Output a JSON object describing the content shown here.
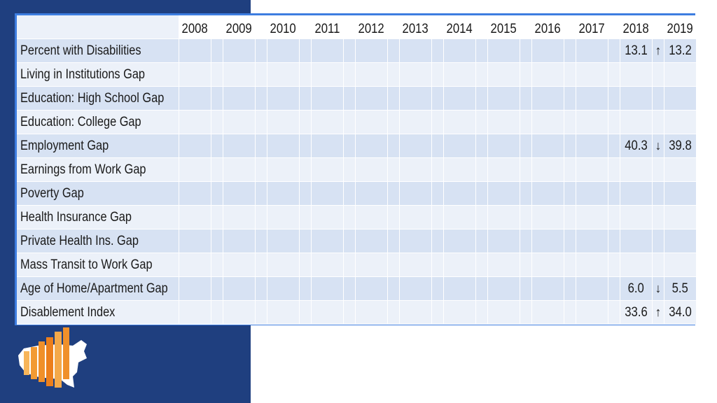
{
  "table": {
    "years": [
      "2008",
      "2009",
      "2010",
      "2011",
      "2012",
      "2013",
      "2014",
      "2015",
      "2016",
      "2017",
      "2018",
      "2019"
    ],
    "rows": [
      {
        "label": "Percent with Disabilities",
        "v2018": "13.1",
        "arrow": "↑",
        "v2019": "13.2"
      },
      {
        "label": "Living in Institutions Gap",
        "v2018": "",
        "arrow": "",
        "v2019": ""
      },
      {
        "label": "Education: High School Gap",
        "v2018": "",
        "arrow": "",
        "v2019": ""
      },
      {
        "label": "Education: College Gap",
        "v2018": "",
        "arrow": "",
        "v2019": ""
      },
      {
        "label": "Employment Gap",
        "v2018": "40.3",
        "arrow": "↓",
        "v2019": "39.8"
      },
      {
        "label": "Earnings from Work Gap",
        "v2018": "",
        "arrow": "",
        "v2019": ""
      },
      {
        "label": "Poverty Gap",
        "v2018": "",
        "arrow": "",
        "v2019": ""
      },
      {
        "label": "Health Insurance Gap",
        "v2018": "",
        "arrow": "",
        "v2019": ""
      },
      {
        "label": "Private Health Ins. Gap",
        "v2018": "",
        "arrow": "",
        "v2019": ""
      },
      {
        "label": "Mass Transit to Work Gap",
        "v2018": "",
        "arrow": "",
        "v2019": ""
      },
      {
        "label": "Age of Home/Apartment Gap",
        "v2018": "6.0",
        "arrow": "↓",
        "v2019": "5.5"
      },
      {
        "label": "Disablement Index",
        "v2018": "33.6",
        "arrow": "↑",
        "v2019": "34.0"
      }
    ]
  },
  "colors": {
    "side_panel": "#1f3f7f",
    "frame_border": "#3d7de0",
    "row_band_dark": "#d7e2f3",
    "row_band_light": "#ecf1f9",
    "logo_orange": "#f0902a",
    "logo_white": "#ffffff"
  },
  "logo": {
    "icon": "us-map-bar-chart-icon"
  }
}
